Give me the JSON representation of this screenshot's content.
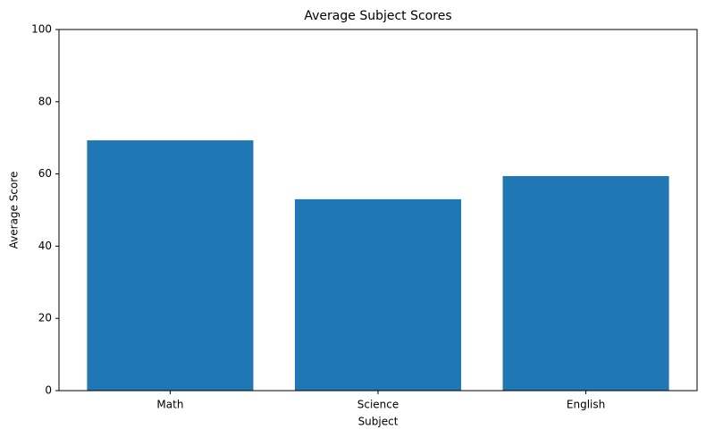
{
  "chart_data": {
    "type": "bar",
    "title": "Average Subject Scores",
    "x_label": "Subject",
    "y_label": "Average Score",
    "categories": [
      "Math",
      "Science",
      "English"
    ],
    "values": [
      69.3,
      53.0,
      59.4
    ],
    "color": "#1f77b4",
    "ylim": [
      0,
      100
    ],
    "yticks": [
      0,
      20,
      40,
      60,
      80,
      100
    ],
    "grid": false
  }
}
